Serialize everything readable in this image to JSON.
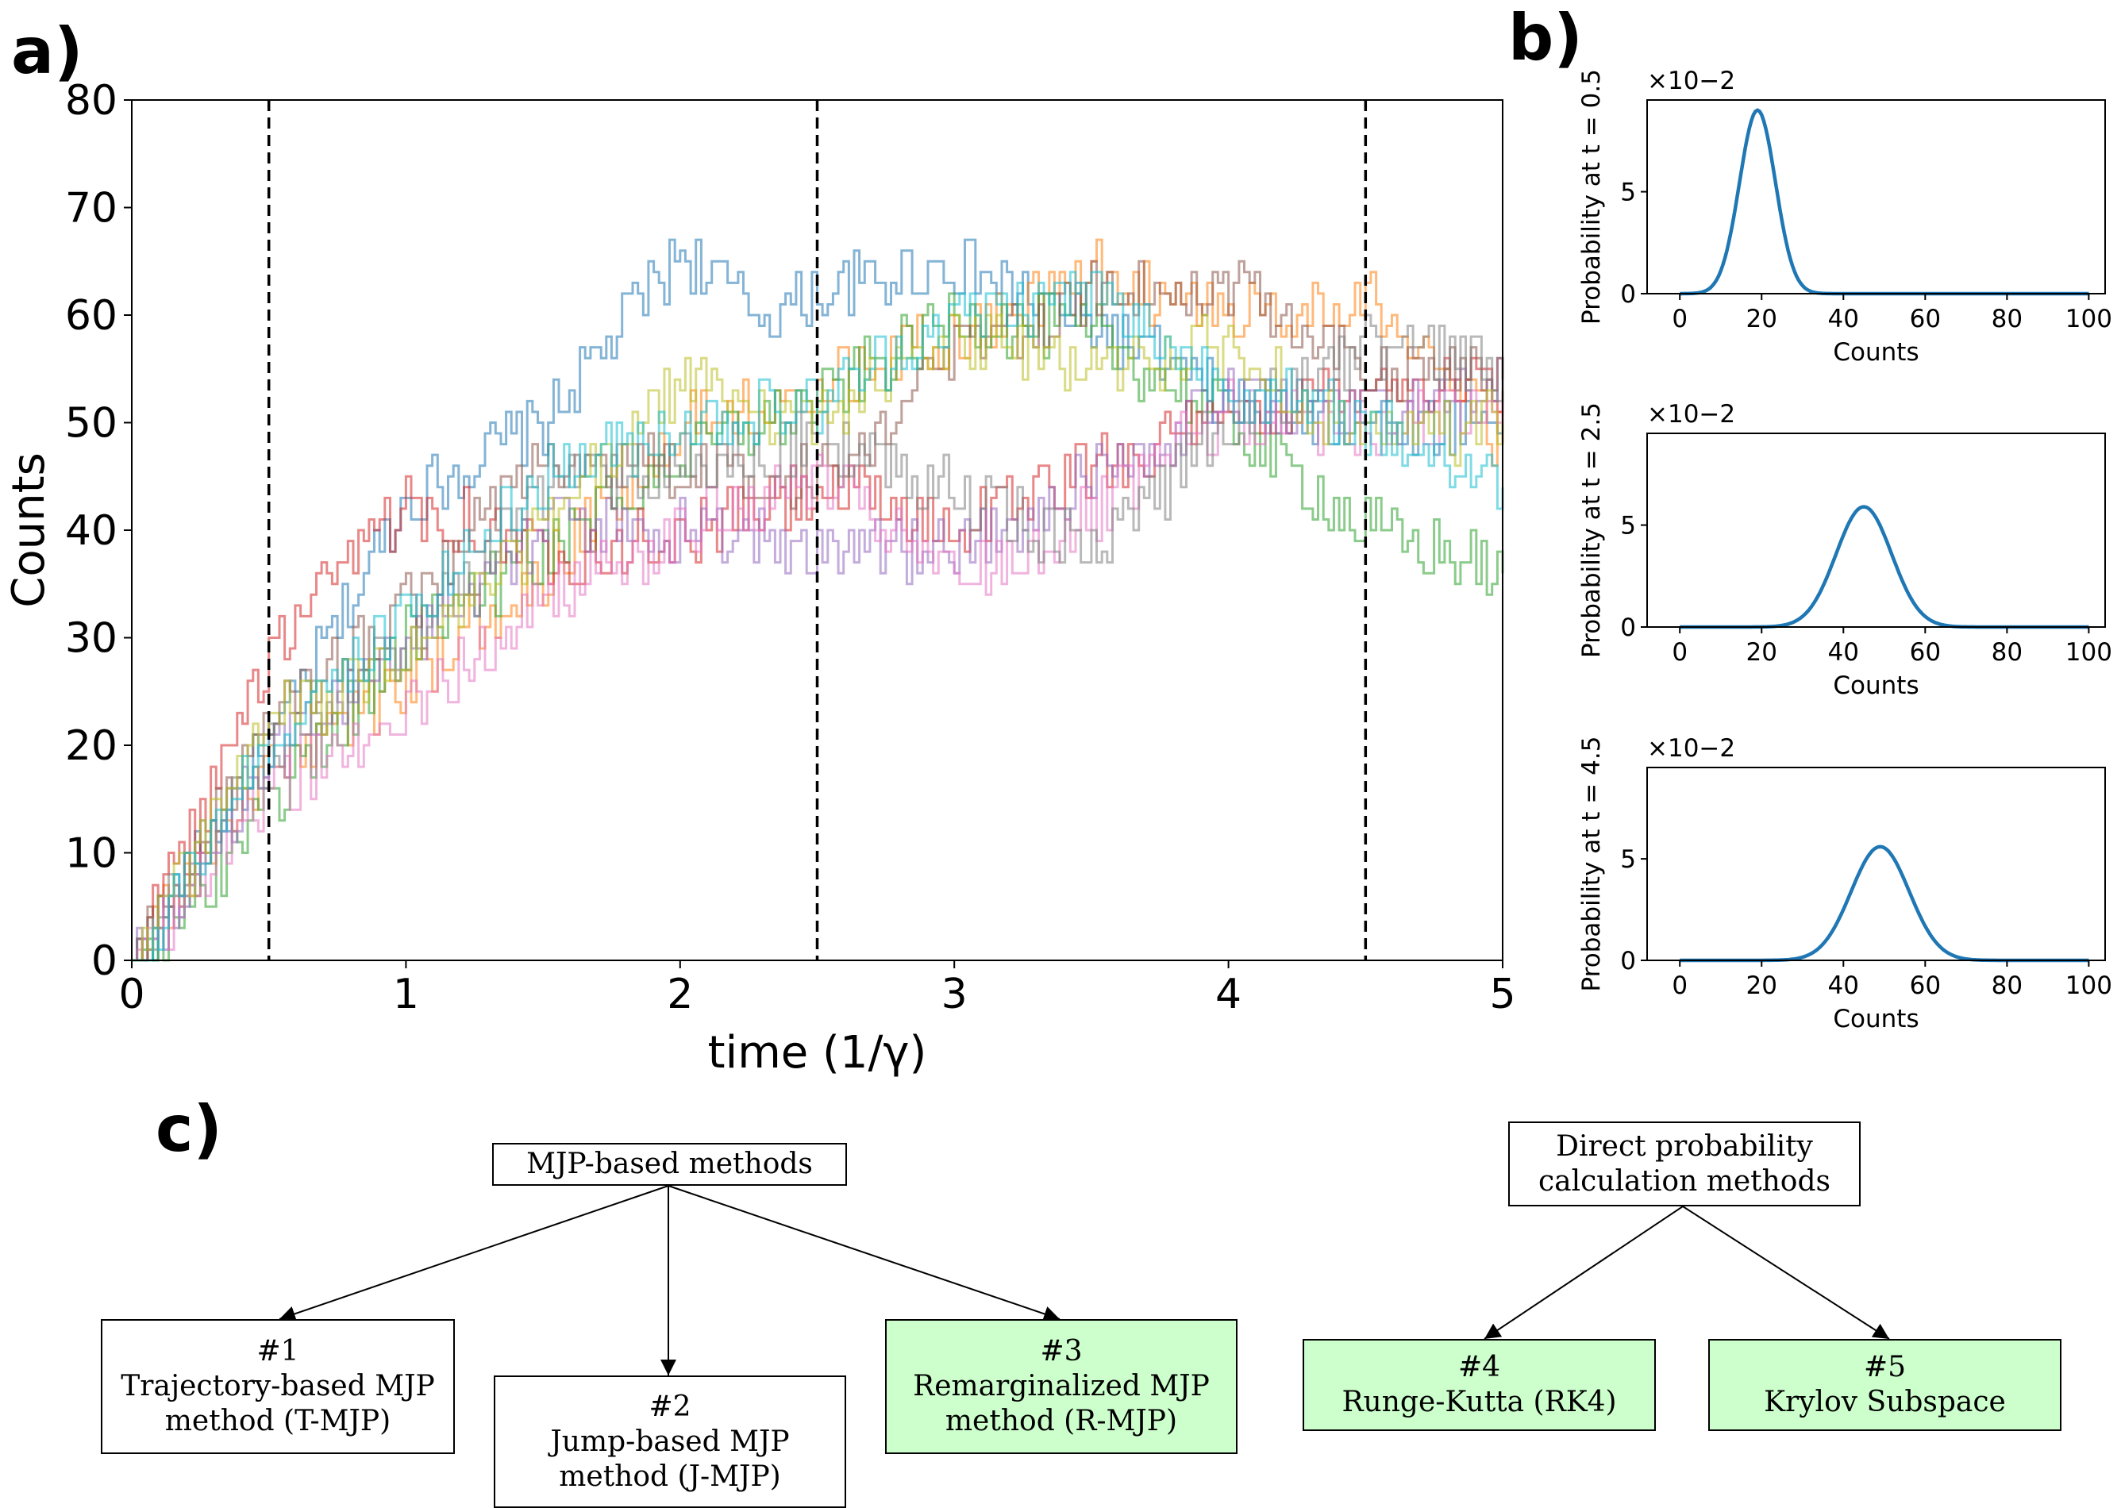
{
  "panel_labels": {
    "a": "a)",
    "b": "b)",
    "c": "c)"
  },
  "colors": {
    "trajectories": [
      "#1f77b4",
      "#ff7f0e",
      "#2ca02c",
      "#d62728",
      "#9467bd",
      "#8c564b",
      "#e377c2",
      "#7f7f7f",
      "#bcbd22",
      "#17becf"
    ],
    "dist": "#1f77b4",
    "green_box": "#ccffcc"
  },
  "chart_data": [
    {
      "type": "line",
      "panel": "a",
      "xlabel": "time (1/γ)",
      "ylabel": "Counts",
      "xlim": [
        0,
        5
      ],
      "ylim": [
        0,
        80
      ],
      "xticks": [
        "0",
        "1",
        "2",
        "3",
        "4",
        "5"
      ],
      "yticks": [
        "0",
        "10",
        "20",
        "30",
        "40",
        "50",
        "60",
        "70",
        "80"
      ],
      "vlines": [
        0.5,
        2.5,
        4.5
      ],
      "series_style": "step trajectories, alpha 0.5",
      "series": [
        {
          "color_index": 0,
          "x": [
            0,
            0.5,
            1,
            1.5,
            2,
            2.3,
            2.5,
            3,
            3.5,
            4,
            4.5,
            5
          ],
          "y": [
            0,
            20,
            43,
            50,
            66,
            60,
            62,
            65,
            59,
            52,
            50,
            50
          ]
        },
        {
          "color_index": 1,
          "x": [
            0,
            0.5,
            1,
            1.5,
            2,
            2.5,
            3,
            3.5,
            4,
            4.5,
            5
          ],
          "y": [
            0,
            18,
            26,
            36,
            50,
            54,
            58,
            64,
            60,
            62,
            48
          ]
        },
        {
          "color_index": 2,
          "x": [
            0,
            0.5,
            1,
            1.5,
            2,
            2.5,
            3,
            3.5,
            4,
            4.5,
            5
          ],
          "y": [
            0,
            14,
            30,
            38,
            47,
            52,
            60,
            58,
            50,
            40,
            36
          ]
        },
        {
          "color_index": 3,
          "x": [
            0,
            0.5,
            1,
            1.5,
            2,
            2.5,
            3,
            3.5,
            4,
            4.5,
            5
          ],
          "y": [
            0,
            28,
            43,
            38,
            39,
            44,
            40,
            46,
            50,
            54,
            53
          ]
        },
        {
          "color_index": 4,
          "x": [
            0,
            0.5,
            1,
            1.5,
            2,
            2.5,
            3,
            3.5,
            4,
            4.5,
            5
          ],
          "y": [
            0,
            18,
            30,
            40,
            40,
            39,
            38,
            45,
            52,
            50,
            54
          ]
        },
        {
          "color_index": 5,
          "x": [
            0,
            0.5,
            1,
            1.5,
            2,
            2.5,
            3,
            3.5,
            4,
            4.5,
            5
          ],
          "y": [
            0,
            22,
            33,
            47,
            46,
            45,
            56,
            62,
            63,
            55,
            54
          ]
        },
        {
          "color_index": 6,
          "x": [
            0,
            0.5,
            1,
            1.5,
            2,
            2.5,
            3,
            3.5,
            4,
            4.5,
            5
          ],
          "y": [
            0,
            16,
            23,
            34,
            40,
            45,
            35,
            41,
            51,
            49,
            52
          ]
        },
        {
          "color_index": 7,
          "x": [
            0,
            0.5,
            1,
            1.5,
            2,
            2.5,
            3,
            3.5,
            4,
            4.5,
            5
          ],
          "y": [
            0,
            20,
            30,
            44,
            46,
            48,
            44,
            38,
            50,
            57,
            55
          ]
        },
        {
          "color_index": 8,
          "x": [
            0,
            0.5,
            1,
            1.5,
            2,
            2.5,
            3,
            3.5,
            4,
            4.5,
            5
          ],
          "y": [
            0,
            22,
            28,
            40,
            54,
            50,
            58,
            55,
            57,
            48,
            50
          ]
        },
        {
          "color_index": 9,
          "x": [
            0,
            0.5,
            1,
            1.5,
            2,
            2.5,
            3,
            3.5,
            4,
            4.5,
            5
          ],
          "y": [
            0,
            20,
            32,
            45,
            50,
            52,
            60,
            62,
            53,
            50,
            44
          ]
        }
      ]
    },
    {
      "type": "line",
      "panel": "b",
      "ylabel": "Probability at t = 0.5",
      "xlabel": "Counts",
      "multiplier": "×10−2",
      "xlim": [
        -8,
        104
      ],
      "ylim": [
        0,
        9.5
      ],
      "xticks": [
        "0",
        "20",
        "40",
        "60",
        "80",
        "100"
      ],
      "yticks": [
        "0",
        "5"
      ],
      "gaussian": {
        "mean": 19,
        "sd": 4.4,
        "peak": 9.0
      }
    },
    {
      "type": "line",
      "panel": "b",
      "ylabel": "Probability at t = 2.5",
      "xlabel": "Counts",
      "multiplier": "×10−2",
      "xlim": [
        -8,
        104
      ],
      "ylim": [
        0,
        9.5
      ],
      "xticks": [
        "0",
        "20",
        "40",
        "60",
        "80",
        "100"
      ],
      "yticks": [
        "0",
        "5"
      ],
      "gaussian": {
        "mean": 45,
        "sd": 6.8,
        "peak": 5.9
      }
    },
    {
      "type": "line",
      "panel": "b",
      "ylabel": "Probability at t = 4.5",
      "xlabel": "Counts",
      "multiplier": "×10−2",
      "xlim": [
        -8,
        104
      ],
      "ylim": [
        0,
        9.5
      ],
      "xticks": [
        "0",
        "20",
        "40",
        "60",
        "80",
        "100"
      ],
      "yticks": [
        "0",
        "5"
      ],
      "gaussian": {
        "mean": 49,
        "sd": 7.1,
        "peak": 5.6
      }
    }
  ],
  "diagram": {
    "mjp_root": {
      "text": "MJP-based methods"
    },
    "direct_root": {
      "line1": "Direct probability",
      "line2": "calculation methods"
    },
    "m1": {
      "num": "#1",
      "line1": "Trajectory-based MJP",
      "line2": "method (T-MJP)"
    },
    "m2": {
      "num": "#2",
      "line1": "Jump-based MJP",
      "line2": "method (J-MJP)"
    },
    "m3": {
      "num": "#3",
      "line1": "Remarginalized MJP",
      "line2": "method (R-MJP)"
    },
    "m4": {
      "num": "#4",
      "line1": "Runge-Kutta (RK4)"
    },
    "m5": {
      "num": "#5",
      "line1": "Krylov Subspace"
    }
  }
}
